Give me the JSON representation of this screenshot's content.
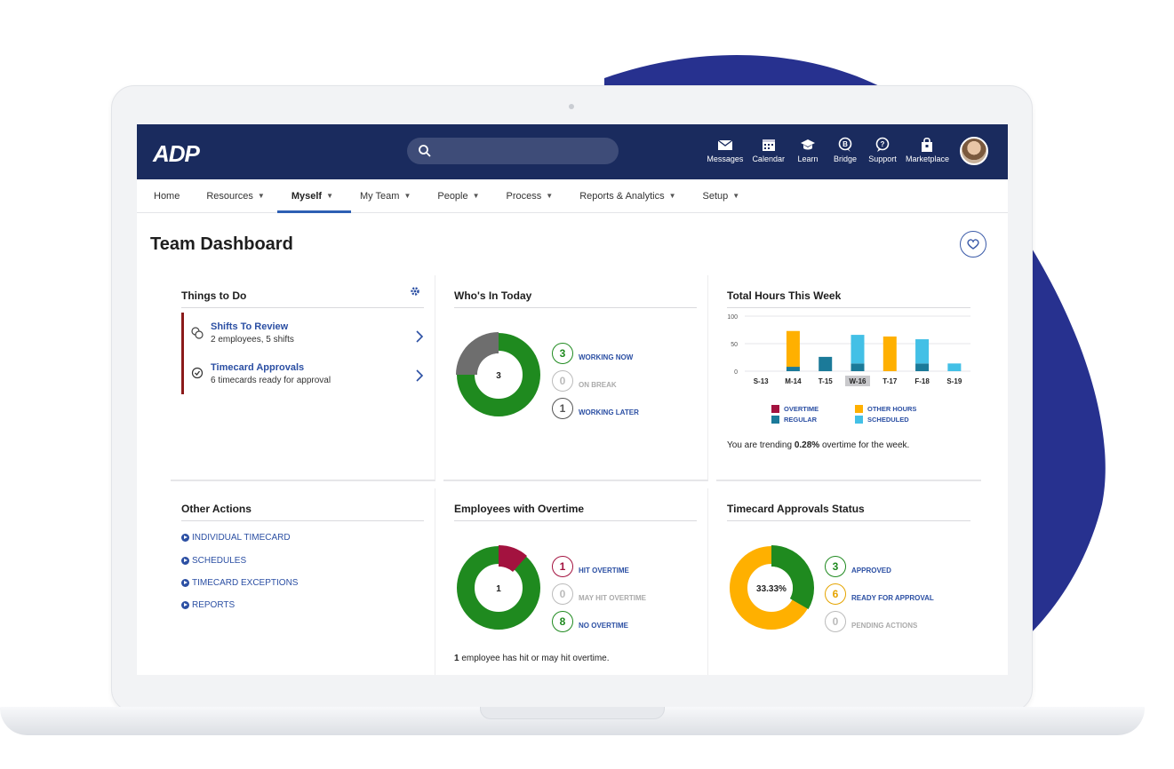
{
  "header": {
    "logo": "ADP",
    "icons": [
      {
        "label": "Messages",
        "icon": "envelope-icon"
      },
      {
        "label": "Calendar",
        "icon": "calendar-icon"
      },
      {
        "label": "Learn",
        "icon": "graduation-cap-icon"
      },
      {
        "label": "Bridge",
        "icon": "bridge-icon"
      },
      {
        "label": "Support",
        "icon": "chat-question-icon"
      },
      {
        "label": "Marketplace",
        "icon": "shopping-bag-icon"
      }
    ]
  },
  "nav": [
    {
      "label": "Home",
      "caret": ""
    },
    {
      "label": "Resources",
      "caret": "▼"
    },
    {
      "label": "Myself",
      "caret": "▼"
    },
    {
      "label": "My Team",
      "caret": "▼"
    },
    {
      "label": "People",
      "caret": "▼"
    },
    {
      "label": "Process",
      "caret": "▼"
    },
    {
      "label": "Reports & Analytics",
      "caret": "▼"
    },
    {
      "label": "Setup",
      "caret": "▼"
    }
  ],
  "page_title": "Team Dashboard",
  "things_to_do": {
    "title": "Things to Do",
    "items": [
      {
        "title": "Shifts To Review",
        "sub": "2 employees, 5 shifts"
      },
      {
        "title": "Timecard Approvals",
        "sub": "6 timecards ready for approval"
      }
    ]
  },
  "whos_in": {
    "title": "Who's In Today",
    "center": "3",
    "legend": [
      {
        "value": "3",
        "label": "WORKING NOW",
        "color": "#1f8a1f"
      },
      {
        "value": "0",
        "label": "ON BREAK",
        "color": "#aaaaaa"
      },
      {
        "value": "1",
        "label": "WORKING LATER",
        "color": "#555555"
      }
    ]
  },
  "total_hours": {
    "title": "Total Hours This Week",
    "trend_prefix": "You are trending ",
    "trend_value": "0.28%",
    "trend_suffix": " overtime for the week."
  },
  "chart_data": {
    "type": "bar",
    "title": "Total Hours This Week",
    "categories": [
      "S-13",
      "M-14",
      "T-15",
      "W-16",
      "T-17",
      "F-18",
      "S-19"
    ],
    "highlight": "W-16",
    "ylim": [
      0,
      100
    ],
    "yticks": [
      0,
      50,
      100
    ],
    "series": [
      {
        "name": "OVERTIME",
        "color": "#a3123f",
        "values": [
          0,
          0,
          0,
          0,
          0,
          0,
          0
        ]
      },
      {
        "name": "REGULAR",
        "color": "#1b7a99",
        "values": [
          0,
          8,
          26,
          14,
          0,
          14,
          0
        ]
      },
      {
        "name": "OTHER HOURS",
        "color": "#ffb000",
        "values": [
          0,
          65,
          0,
          0,
          63,
          0,
          0
        ]
      },
      {
        "name": "SCHEDULED",
        "color": "#43c0e6",
        "values": [
          0,
          0,
          0,
          52,
          0,
          44,
          14
        ]
      }
    ],
    "legend_position": "bottom"
  },
  "other_actions": {
    "title": "Other Actions",
    "items": [
      "INDIVIDUAL TIMECARD",
      "SCHEDULES",
      "TIMECARD EXCEPTIONS",
      "REPORTS"
    ]
  },
  "overtime": {
    "title": "Employees with Overtime",
    "center": "1",
    "legend": [
      {
        "value": "1",
        "label": "HIT OVERTIME",
        "color": "#a3123f"
      },
      {
        "value": "0",
        "label": "MAY HIT OVERTIME",
        "color": "#aaaaaa"
      },
      {
        "value": "8",
        "label": "NO OVERTIME",
        "color": "#1f8a1f"
      }
    ],
    "footer_bold": "1",
    "footer_text": " employee has hit or may hit overtime."
  },
  "approvals": {
    "title": "Timecard Approvals Status",
    "center": "33.33%",
    "legend": [
      {
        "value": "3",
        "label": "APPROVED",
        "color": "#1f8a1f"
      },
      {
        "value": "6",
        "label": "READY FOR APPROVAL",
        "color": "#e5a400"
      },
      {
        "value": "0",
        "label": "PENDING ACTIONS",
        "color": "#aaaaaa"
      }
    ]
  },
  "colors": {
    "navy": "#1a2b5e",
    "blob": "#27318f",
    "link": "#2b4fa3",
    "green": "#1f8a1f",
    "grey": "#6e6e6e",
    "crimson": "#a3123f",
    "amber": "#ffb000"
  }
}
